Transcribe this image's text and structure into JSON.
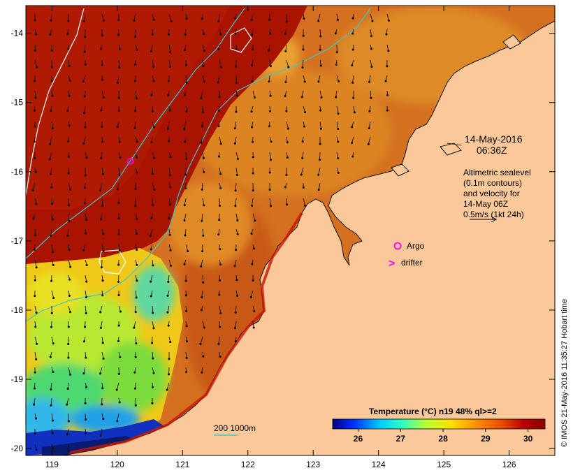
{
  "chart_data": {
    "type": "heatmap",
    "title": "",
    "xaxis": {
      "min": 118.6,
      "max": 126.7,
      "ticks": [
        119,
        120,
        121,
        122,
        123,
        124,
        125,
        126
      ]
    },
    "yaxis": {
      "min": -20.1,
      "max": -13.6,
      "ticks": [
        -14,
        -15,
        -16,
        -17,
        -18,
        -19,
        -20
      ]
    },
    "date_label": {
      "line1": "14-May-2016",
      "line2": "06:36Z"
    },
    "altimetry_note": [
      "Altimetric sealevel",
      "(0.1m contours)",
      "and velocity for",
      "14-May 06Z",
      "0.5m/s (1kt 24h)"
    ],
    "legend": {
      "argo_label": "Argo",
      "argo_marker_pos": [
        120.2,
        -15.85
      ],
      "drifter_label": "drifter",
      "drifter_symbol": ">"
    },
    "bathymetry_label": "200  1000m",
    "colorbar": {
      "title": "Temperature (°C) n19 48% ql>=2",
      "min": 25.4,
      "max": 30.4,
      "ticks": [
        26,
        27,
        28,
        29,
        30
      ],
      "colors": [
        "#00007f",
        "#0030ff",
        "#00c8ff",
        "#30ffc0",
        "#b8ff30",
        "#ffe000",
        "#ff8c00",
        "#e84800",
        "#b80000",
        "#8a0000"
      ]
    },
    "credit": "© IMOS 21-May-2016 11:35:27 Hobart time",
    "colors": {
      "land": "#fbc89a",
      "hot": "#aa1600",
      "warm": "#d66a1a",
      "mid": "#e8a020",
      "yellow": "#f4e010",
      "green": "#6ed840",
      "cyan": "#30c8e8",
      "blue": "#1440d8",
      "contour": "#3cc8c8",
      "argo": "#ff00ff"
    }
  }
}
